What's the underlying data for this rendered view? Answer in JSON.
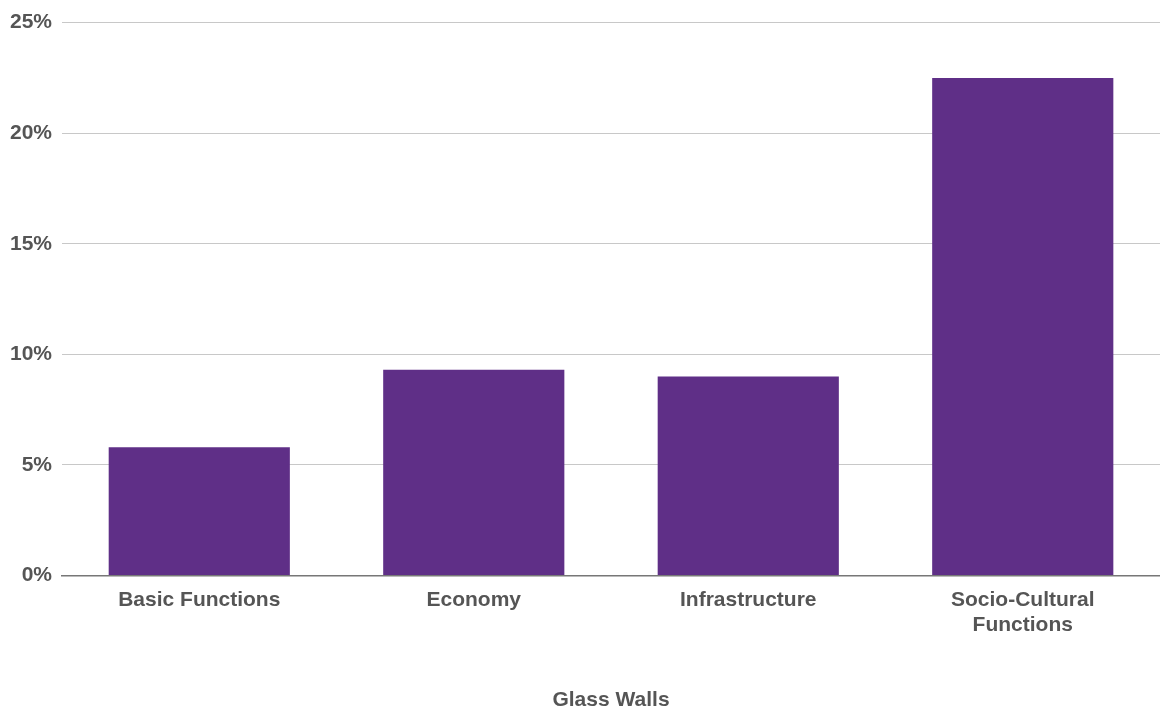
{
  "chart_data": {
    "type": "bar",
    "xlabel": "Glass Walls",
    "categories": [
      "Basic Functions",
      "Economy",
      "Infrastructure",
      "Socio-Cultural Functions"
    ],
    "values": [
      5.8,
      9.3,
      9.0,
      22.5
    ],
    "color": "#5f2f87",
    "ylim": [
      0,
      25
    ],
    "yticks": [
      {
        "value": 0,
        "label": "0%"
      },
      {
        "value": 5,
        "label": "5%"
      },
      {
        "value": 10,
        "label": "10%"
      },
      {
        "value": 15,
        "label": "15%"
      },
      {
        "value": 20,
        "label": "20%"
      },
      {
        "value": 25,
        "label": "25%"
      }
    ],
    "grid": "y",
    "legend": false
  }
}
